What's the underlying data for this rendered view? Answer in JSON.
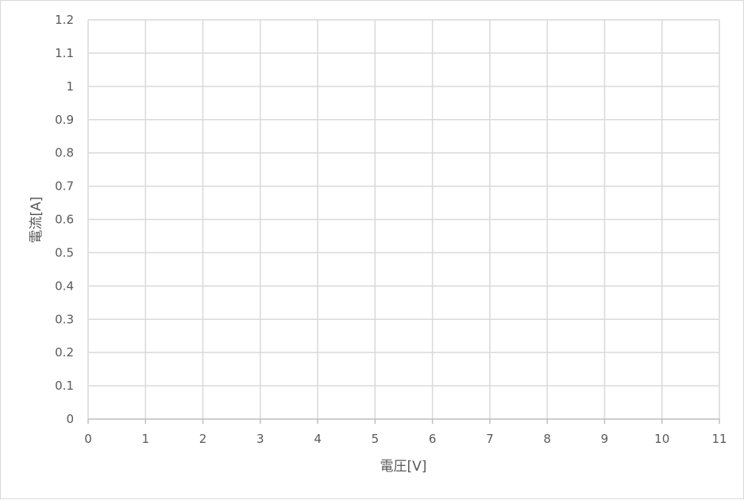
{
  "chart_data": {
    "type": "scatter",
    "title": "",
    "xlabel": "電圧[V]",
    "ylabel": "電流[A]",
    "xlim": [
      0,
      11
    ],
    "ylim": [
      0,
      1.2
    ],
    "x_ticks": [
      "0",
      "1",
      "2",
      "3",
      "4",
      "5",
      "6",
      "7",
      "8",
      "9",
      "10",
      "11"
    ],
    "y_ticks": [
      "0",
      "0.1",
      "0.2",
      "0.3",
      "0.4",
      "0.5",
      "0.6",
      "0.7",
      "0.8",
      "0.9",
      "1",
      "1.1",
      "1.2"
    ],
    "grid": true,
    "legend": "none",
    "series": []
  },
  "colors": {
    "grid": "#d9d9d9",
    "axis": "#bfbfbf",
    "text": "#595959"
  }
}
